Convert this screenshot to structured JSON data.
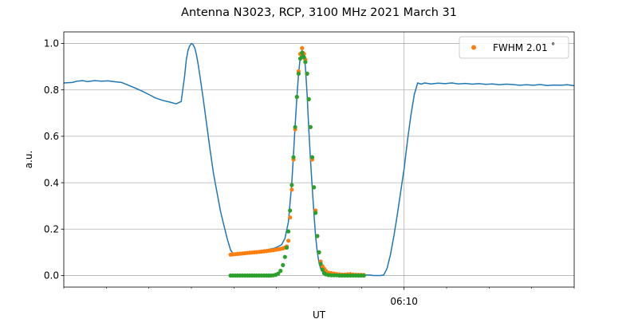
{
  "chart_data": {
    "type": "line",
    "title": "Antenna N3023, RCP, 3100 MHz 2021 March 31",
    "xlabel": "UT",
    "ylabel": "a.u.",
    "x_unit": "minutes from 06:00 UT",
    "xlim": [
      0,
      15
    ],
    "ylim": [
      -0.05,
      1.05
    ],
    "x_major_ticks": [
      {
        "x": 10,
        "label": "06:10"
      }
    ],
    "x_minor_ticks": [
      0,
      1.25,
      2.5,
      3.75,
      5,
      6.25,
      7.5,
      8.75,
      11.25,
      12.5,
      13.75,
      15
    ],
    "y_ticks": [
      0.0,
      0.2,
      0.4,
      0.6,
      0.8,
      1.0
    ],
    "y_tick_labels": [
      "0.0",
      "0.2",
      "0.4",
      "0.6",
      "0.8",
      "1.0"
    ],
    "grid": true,
    "legend": {
      "position": "top-right",
      "entries": [
        "FWHM 2.01$^\\circ$"
      ],
      "display_text": "FWHM 2.01 ˚"
    },
    "series": [
      {
        "color": "#1f77b4",
        "style": "line",
        "x": [
          0.0,
          0.25,
          0.4,
          0.55,
          0.7,
          0.9,
          1.1,
          1.3,
          1.5,
          1.7,
          1.9,
          2.1,
          2.3,
          2.5,
          2.7,
          2.9,
          3.1,
          3.3,
          3.45,
          3.55,
          3.6,
          3.65,
          3.7,
          3.75,
          3.8,
          3.85,
          3.9,
          3.95,
          4.0,
          4.1,
          4.2,
          4.3,
          4.4,
          4.5,
          4.6,
          4.7,
          4.8,
          4.9,
          5.0,
          5.1,
          5.2,
          5.3,
          5.4,
          5.6,
          5.8,
          6.0,
          6.2,
          6.3,
          6.4,
          6.5,
          6.6,
          6.7,
          6.75,
          6.8,
          6.85,
          6.9,
          6.95,
          7.0,
          7.05,
          7.1,
          7.15,
          7.2,
          7.25,
          7.3,
          7.35,
          7.4,
          7.45,
          7.5,
          7.55,
          7.6,
          7.65,
          7.7,
          7.75,
          7.8,
          7.9,
          8.0,
          8.2,
          8.4,
          8.6,
          8.8,
          9.0,
          9.1,
          9.2,
          9.3,
          9.4,
          9.5,
          9.6,
          9.7,
          9.8,
          9.9,
          10.0,
          10.1,
          10.2,
          10.3,
          10.4,
          10.5,
          10.55,
          10.6,
          10.8,
          11.0,
          11.2,
          11.4,
          11.6,
          11.8,
          12.0,
          12.2,
          12.4,
          12.6,
          12.8,
          13.0,
          13.2,
          13.4,
          13.6,
          13.8,
          14.0,
          14.2,
          14.4,
          14.6,
          14.8,
          15.0
        ],
        "y": [
          0.83,
          0.832,
          0.838,
          0.84,
          0.836,
          0.84,
          0.838,
          0.839,
          0.835,
          0.832,
          0.82,
          0.808,
          0.795,
          0.78,
          0.765,
          0.755,
          0.748,
          0.74,
          0.75,
          0.86,
          0.93,
          0.97,
          0.99,
          1.0,
          0.995,
          0.98,
          0.95,
          0.91,
          0.86,
          0.76,
          0.65,
          0.54,
          0.44,
          0.36,
          0.28,
          0.22,
          0.16,
          0.11,
          0.09,
          0.095,
          0.098,
          0.1,
          0.1,
          0.104,
          0.108,
          0.112,
          0.118,
          0.125,
          0.133,
          0.16,
          0.23,
          0.4,
          0.52,
          0.65,
          0.77,
          0.87,
          0.94,
          0.97,
          0.955,
          0.9,
          0.78,
          0.63,
          0.5,
          0.38,
          0.27,
          0.17,
          0.1,
          0.055,
          0.03,
          0.017,
          0.01,
          0.006,
          0.004,
          0.003,
          0.003,
          0.003,
          0.002,
          0.002,
          0.002,
          0.002,
          0.002,
          0.0,
          0.0,
          0.0,
          0.002,
          0.03,
          0.09,
          0.17,
          0.26,
          0.36,
          0.46,
          0.58,
          0.69,
          0.78,
          0.83,
          0.825,
          0.827,
          0.83,
          0.826,
          0.829,
          0.827,
          0.83,
          0.826,
          0.828,
          0.825,
          0.827,
          0.824,
          0.826,
          0.822,
          0.825,
          0.823,
          0.82,
          0.822,
          0.82,
          0.823,
          0.819,
          0.821,
          0.82,
          0.822,
          0.818
        ]
      },
      {
        "color": "#ff7f0e",
        "style": "markers",
        "name": "FWHM 2.01˚",
        "x": [
          4.9,
          4.97,
          5.04,
          5.11,
          5.18,
          5.25,
          5.32,
          5.39,
          5.46,
          5.53,
          5.6,
          5.67,
          5.74,
          5.81,
          5.88,
          5.95,
          6.02,
          6.09,
          6.16,
          6.23,
          6.3,
          6.37,
          6.44,
          6.5,
          6.55,
          6.6,
          6.65,
          6.7,
          6.75,
          6.8,
          6.85,
          6.9,
          6.95,
          7.0,
          7.03,
          7.06,
          7.1,
          7.15,
          7.2,
          7.25,
          7.3,
          7.35,
          7.4,
          7.45,
          7.5,
          7.55,
          7.6,
          7.65,
          7.7,
          7.78,
          7.86,
          7.94,
          8.02,
          8.1,
          8.18,
          8.26,
          8.34,
          8.42,
          8.5,
          8.58,
          8.66,
          8.74,
          8.82
        ],
        "y": [
          0.09,
          0.091,
          0.092,
          0.093,
          0.094,
          0.095,
          0.096,
          0.097,
          0.098,
          0.099,
          0.1,
          0.101,
          0.102,
          0.103,
          0.104,
          0.105,
          0.107,
          0.108,
          0.109,
          0.111,
          0.113,
          0.115,
          0.117,
          0.12,
          0.125,
          0.15,
          0.25,
          0.37,
          0.5,
          0.63,
          0.77,
          0.88,
          0.955,
          0.98,
          0.96,
          0.955,
          0.93,
          0.87,
          0.76,
          0.64,
          0.5,
          0.38,
          0.28,
          0.17,
          0.1,
          0.06,
          0.04,
          0.03,
          0.02,
          0.012,
          0.01,
          0.008,
          0.006,
          0.005,
          0.004,
          0.004,
          0.005,
          0.006,
          0.004,
          0.003,
          0.003,
          0.003,
          0.002
        ]
      },
      {
        "color": "#2ca02c",
        "style": "markers",
        "x": [
          4.9,
          4.97,
          5.04,
          5.11,
          5.18,
          5.25,
          5.32,
          5.39,
          5.46,
          5.53,
          5.6,
          5.67,
          5.74,
          5.81,
          5.88,
          5.95,
          6.02,
          6.09,
          6.16,
          6.23,
          6.3,
          6.37,
          6.44,
          6.5,
          6.55,
          6.6,
          6.65,
          6.7,
          6.75,
          6.8,
          6.85,
          6.9,
          6.95,
          7.0,
          7.03,
          7.06,
          7.1,
          7.15,
          7.2,
          7.25,
          7.3,
          7.35,
          7.4,
          7.45,
          7.5,
          7.55,
          7.6,
          7.65,
          7.7,
          7.78,
          7.86,
          7.94,
          8.02,
          8.1,
          8.18,
          8.26,
          8.34,
          8.42,
          8.5,
          8.58,
          8.66,
          8.74,
          8.82
        ],
        "y": [
          0.0,
          0.0,
          0.0,
          0.0,
          0.0,
          0.0,
          0.0,
          0.0,
          0.0,
          0.0,
          0.0,
          0.0,
          0.0,
          0.0,
          0.0,
          0.0,
          0.0,
          0.0,
          0.001,
          0.003,
          0.008,
          0.02,
          0.045,
          0.08,
          0.12,
          0.19,
          0.28,
          0.39,
          0.51,
          0.64,
          0.77,
          0.87,
          0.935,
          0.96,
          0.945,
          0.94,
          0.92,
          0.87,
          0.76,
          0.64,
          0.51,
          0.38,
          0.27,
          0.17,
          0.1,
          0.05,
          0.025,
          0.01,
          0.005,
          0.002,
          0.001,
          0.001,
          0.001,
          0.0,
          0.0,
          0.0,
          0.0,
          0.0,
          0.0,
          0.0,
          0.0,
          0.0,
          0.0
        ]
      }
    ]
  }
}
